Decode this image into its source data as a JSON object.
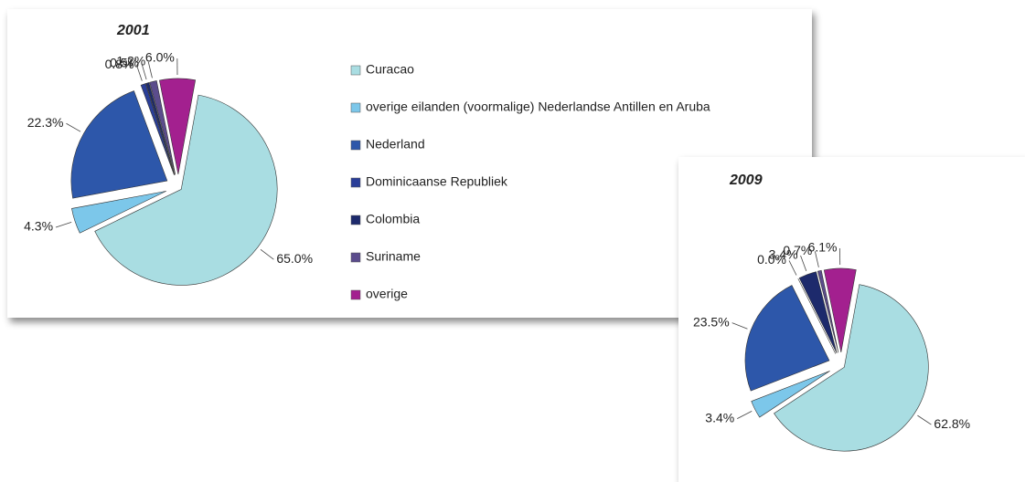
{
  "chart_data": [
    {
      "type": "pie",
      "title": "2001",
      "categories": [
        "Curacao",
        "overige eilanden (voormalige) Nederlandse Antillen en Aruba",
        "Nederland",
        "Dominicaanse Republiek",
        "Colombia",
        "Suriname",
        "overige"
      ],
      "values": [
        65.0,
        4.3,
        22.3,
        0.8,
        0.5,
        1.2,
        6.0
      ],
      "value_labels": [
        "65.0%",
        "4.3%",
        "22.3%",
        "0.8%",
        "0.5%",
        "1.2%",
        "6.0%"
      ],
      "colors": [
        "#a9dde2",
        "#7cc7ea",
        "#2d57aa",
        "#2a3e98",
        "#1d2a6c",
        "#5b4c8c",
        "#a3208f"
      ]
    },
    {
      "type": "pie",
      "title": "2009",
      "values": [
        62.8,
        3.4,
        23.5,
        0.0,
        3.4,
        0.7,
        6.1
      ],
      "value_labels": [
        "62.8%",
        "3.4%",
        "23.5%",
        "0.0%",
        "3.4%",
        "0.7%",
        "6.1%"
      ],
      "colors": [
        "#a9dde2",
        "#7cc7ea",
        "#2d57aa",
        "#2a3e98",
        "#1d2a6c",
        "#5b4c8c",
        "#a3208f"
      ]
    }
  ]
}
